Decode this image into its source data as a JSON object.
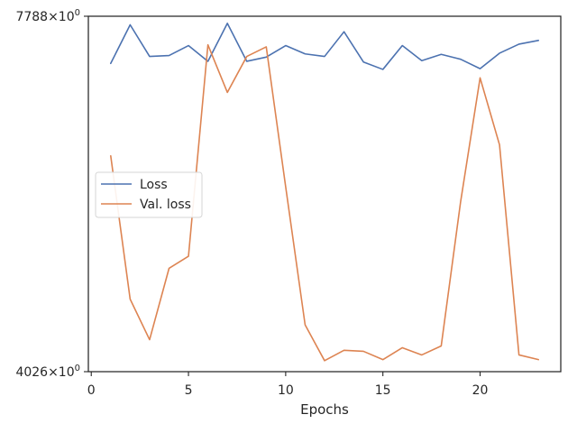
{
  "chart_data": {
    "type": "line",
    "xlabel": "Epochs",
    "ylabel": "",
    "yscale": "log",
    "xlim": [
      -0.15,
      24.15
    ],
    "ylim": [
      4026,
      7788
    ],
    "x_ticks": [
      0,
      5,
      10,
      15,
      20
    ],
    "y_tick_labels": [
      {
        "value": 7788,
        "mantissa": "7788",
        "exponent": "0"
      },
      {
        "value": 4026,
        "mantissa": "4026",
        "exponent": "0"
      }
    ],
    "grid": false,
    "legend_position": "center-left",
    "x": [
      1,
      2,
      3,
      4,
      5,
      6,
      7,
      8,
      9,
      10,
      11,
      12,
      13,
      14,
      15,
      16,
      17,
      18,
      19,
      20,
      21,
      22,
      23
    ],
    "series": [
      {
        "name": "Loss",
        "color": "#4c72b0",
        "values": [
          7135,
          7665,
          7228,
          7240,
          7375,
          7163,
          7686,
          7163,
          7219,
          7375,
          7262,
          7228,
          7567,
          7154,
          7056,
          7375,
          7172,
          7256,
          7190,
          7066,
          7272,
          7395,
          7446
        ]
      },
      {
        "name": "Val. loss",
        "color": "#dd8452",
        "values": [
          6010,
          4606,
          4272,
          4877,
          4988,
          7385,
          6761,
          7228,
          7358,
          5674,
          4391,
          4109,
          4189,
          4181,
          4117,
          4209,
          4153,
          4223,
          5522,
          6946,
          6134,
          4153,
          4117
        ]
      }
    ]
  }
}
